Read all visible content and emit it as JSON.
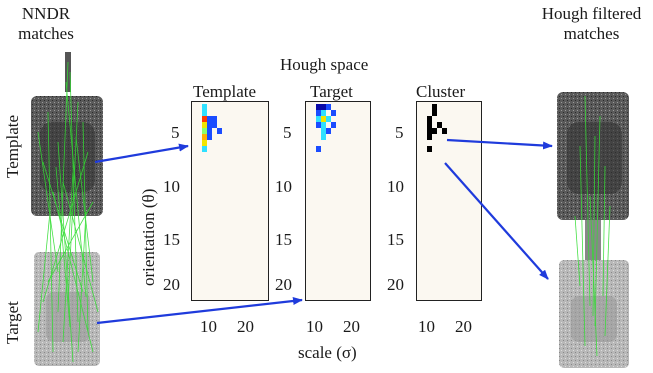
{
  "titles": {
    "left": "NNDR\nmatches",
    "right": "Hough filtered\nmatches",
    "center": "Hough space"
  },
  "panels": [
    {
      "name": "Template",
      "cells": [
        {
          "x": 0,
          "y": 0,
          "c": "#2fe0ff"
        },
        {
          "x": 0,
          "y": 1,
          "c": "#2fe0ff"
        },
        {
          "x": 0,
          "y": 2,
          "c": "#ff3a00"
        },
        {
          "x": 1,
          "y": 2,
          "c": "#1a4cff"
        },
        {
          "x": 2,
          "y": 2,
          "c": "#1a4cff"
        },
        {
          "x": 0,
          "y": 3,
          "c": "#f2e500"
        },
        {
          "x": 1,
          "y": 3,
          "c": "#1a4cff"
        },
        {
          "x": 2,
          "y": 3,
          "c": "#1a4cff"
        },
        {
          "x": 0,
          "y": 4,
          "c": "#8cff6a"
        },
        {
          "x": 1,
          "y": 4,
          "c": "#1a4cff"
        },
        {
          "x": 3,
          "y": 4,
          "c": "#1a4cff"
        },
        {
          "x": 0,
          "y": 5,
          "c": "#ffb000"
        },
        {
          "x": 1,
          "y": 5,
          "c": "#1a4cff"
        },
        {
          "x": 0,
          "y": 6,
          "c": "#f2e500"
        },
        {
          "x": 0,
          "y": 7,
          "c": "#2fe0ff"
        }
      ]
    },
    {
      "name": "Target",
      "cells": [
        {
          "x": 0,
          "y": 0,
          "c": "#0a0aa8"
        },
        {
          "x": 1,
          "y": 0,
          "c": "#0a0aa8"
        },
        {
          "x": 2,
          "y": 0,
          "c": "#1a4cff"
        },
        {
          "x": 0,
          "y": 1,
          "c": "#1a4cff"
        },
        {
          "x": 1,
          "y": 1,
          "c": "#2fe0ff"
        },
        {
          "x": 3,
          "y": 1,
          "c": "#1a4cff"
        },
        {
          "x": 0,
          "y": 2,
          "c": "#2fe0ff"
        },
        {
          "x": 1,
          "y": 2,
          "c": "#f2e500"
        },
        {
          "x": 2,
          "y": 2,
          "c": "#2fe0ff"
        },
        {
          "x": 0,
          "y": 3,
          "c": "#1a4cff"
        },
        {
          "x": 1,
          "y": 3,
          "c": "#2fe0ff"
        },
        {
          "x": 3,
          "y": 3,
          "c": "#1a4cff"
        },
        {
          "x": 1,
          "y": 4,
          "c": "#2fe0ff"
        },
        {
          "x": 2,
          "y": 4,
          "c": "#1a4cff"
        },
        {
          "x": 1,
          "y": 5,
          "c": "#2fe0ff"
        },
        {
          "x": 0,
          "y": 7,
          "c": "#1a4cff"
        }
      ]
    },
    {
      "name": "Cluster",
      "cells": [
        {
          "x": 1,
          "y": 0,
          "c": "#000000"
        },
        {
          "x": 1,
          "y": 1,
          "c": "#000000"
        },
        {
          "x": 0,
          "y": 2,
          "c": "#000000"
        },
        {
          "x": 0,
          "y": 3,
          "c": "#000000"
        },
        {
          "x": 2,
          "y": 3,
          "c": "#000000"
        },
        {
          "x": 0,
          "y": 4,
          "c": "#000000"
        },
        {
          "x": 1,
          "y": 4,
          "c": "#000000"
        },
        {
          "x": 3,
          "y": 4,
          "c": "#000000"
        },
        {
          "x": 0,
          "y": 5,
          "c": "#000000"
        },
        {
          "x": 0,
          "y": 7,
          "c": "#000000"
        }
      ]
    }
  ],
  "y_ticks": [
    "5",
    "10",
    "15",
    "20"
  ],
  "x_ticks": [
    "10",
    "20"
  ],
  "y_axis_label": "orientation (θ)",
  "x_axis_label": "scale (σ)",
  "side_labels": {
    "template": "Template",
    "target": "Target"
  },
  "colors": {
    "arrow": "#1f3bdc",
    "match_line": "#33dd33",
    "panel_bg": "#fbf8f1"
  }
}
